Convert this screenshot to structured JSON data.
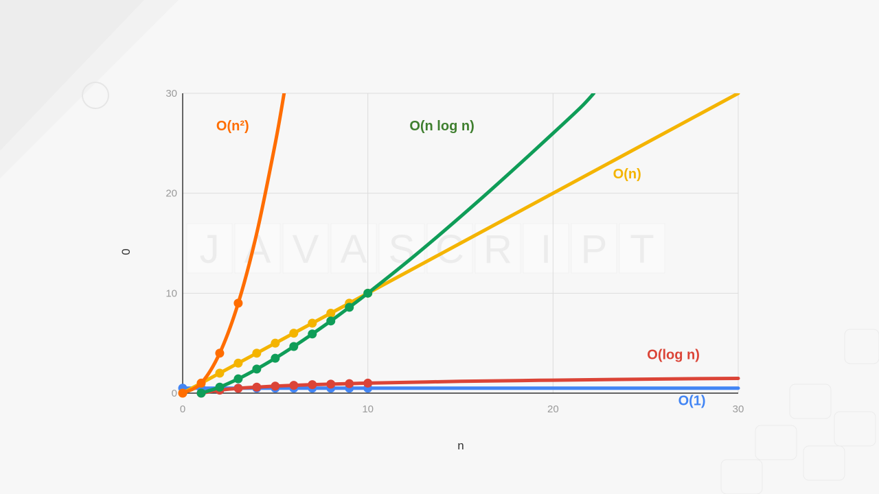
{
  "chart_data": {
    "type": "line",
    "xlabel": "n",
    "ylabel": "0",
    "xlim": [
      0,
      30
    ],
    "ylim": [
      0,
      30
    ],
    "x_ticks": [
      "0",
      "10",
      "20",
      "30"
    ],
    "y_ticks": [
      "0",
      "10",
      "20",
      "30"
    ],
    "grid": true,
    "legend": "inline labels",
    "watermark": [
      "J",
      "A",
      "V",
      "A",
      "S",
      "C",
      "R",
      "I",
      "P",
      "T"
    ],
    "series": [
      {
        "name": "O(1)",
        "color": "#4285f4",
        "label_pos": [
          27.5,
          -1.2
        ],
        "markers": [
          [
            0,
            0.5
          ],
          [
            1,
            0.5
          ],
          [
            2,
            0.5
          ],
          [
            3,
            0.5
          ],
          [
            4,
            0.5
          ],
          [
            5,
            0.5
          ],
          [
            6,
            0.5
          ],
          [
            7,
            0.5
          ],
          [
            8,
            0.5
          ],
          [
            9,
            0.5
          ],
          [
            10,
            0.5
          ]
        ],
        "line": [
          [
            0,
            0.5
          ],
          [
            30,
            0.5
          ]
        ]
      },
      {
        "name": "O(log n)",
        "color": "#db4437",
        "label_pos": [
          26.5,
          3.4
        ],
        "markers": [
          [
            1,
            0
          ],
          [
            2,
            0.3
          ],
          [
            3,
            0.48
          ],
          [
            4,
            0.6
          ],
          [
            5,
            0.7
          ],
          [
            6,
            0.78
          ],
          [
            7,
            0.85
          ],
          [
            8,
            0.9
          ],
          [
            9,
            0.95
          ],
          [
            10,
            1.0
          ]
        ],
        "line": [
          [
            1,
            0
          ],
          [
            2,
            0.3
          ],
          [
            3,
            0.48
          ],
          [
            4,
            0.6
          ],
          [
            5,
            0.7
          ],
          [
            6,
            0.78
          ],
          [
            7,
            0.85
          ],
          [
            8,
            0.9
          ],
          [
            9,
            0.95
          ],
          [
            10,
            1.0
          ],
          [
            15,
            1.18
          ],
          [
            20,
            1.3
          ],
          [
            25,
            1.4
          ],
          [
            30,
            1.48
          ]
        ]
      },
      {
        "name": "O(n)",
        "color": "#f4b400",
        "label_pos": [
          24,
          21.5
        ],
        "markers": [
          [
            0,
            0
          ],
          [
            1,
            1
          ],
          [
            2,
            2
          ],
          [
            3,
            3
          ],
          [
            4,
            4
          ],
          [
            5,
            5
          ],
          [
            6,
            6
          ],
          [
            7,
            7
          ],
          [
            8,
            8
          ],
          [
            9,
            9
          ],
          [
            10,
            10
          ]
        ],
        "line": [
          [
            0,
            0
          ],
          [
            30,
            30
          ]
        ]
      },
      {
        "name": "O(n log n)",
        "color": "#0f9d58",
        "label_color": "#3f7f2f",
        "label_pos": [
          14,
          26.3
        ],
        "markers": [
          [
            1,
            0
          ],
          [
            2,
            0.6
          ],
          [
            3,
            1.43
          ],
          [
            4,
            2.41
          ],
          [
            5,
            3.49
          ],
          [
            6,
            4.67
          ],
          [
            7,
            5.92
          ],
          [
            8,
            7.22
          ],
          [
            9,
            8.59
          ],
          [
            10,
            10
          ]
        ],
        "line": [
          [
            1,
            0
          ],
          [
            2,
            0.6
          ],
          [
            3,
            1.43
          ],
          [
            4,
            2.41
          ],
          [
            5,
            3.49
          ],
          [
            6,
            4.67
          ],
          [
            7,
            5.92
          ],
          [
            8,
            7.22
          ],
          [
            9,
            8.59
          ],
          [
            10,
            10
          ],
          [
            12,
            12.95
          ],
          [
            14,
            16.05
          ],
          [
            16,
            19.27
          ],
          [
            18,
            22.6
          ],
          [
            20,
            26.0
          ],
          [
            21.5,
            28.6
          ],
          [
            22.2,
            30
          ]
        ]
      },
      {
        "name": "O(n²)",
        "color": "#ff6d00",
        "label_pos": [
          2.7,
          26.3
        ],
        "markers": [
          [
            0,
            0
          ],
          [
            1,
            1
          ],
          [
            2,
            4
          ],
          [
            3,
            9
          ]
        ],
        "line": [
          [
            0,
            0
          ],
          [
            1,
            1
          ],
          [
            2,
            4
          ],
          [
            3,
            9
          ],
          [
            4,
            16
          ],
          [
            5,
            25
          ],
          [
            5.477,
            30
          ]
        ]
      }
    ]
  }
}
